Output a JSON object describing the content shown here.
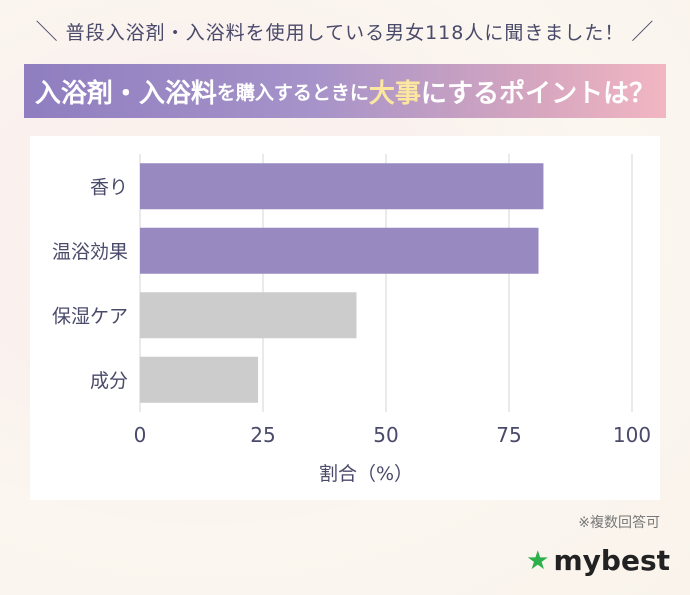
{
  "header": {
    "survey_text": "普段入浴剤・入浴料を使用している男女118人に聞きました！",
    "banner": {
      "part1": "入浴剤・入浴料",
      "part2": "を購入するときに",
      "part3": "大事",
      "part4": "にするポイントは？"
    }
  },
  "chart_data": {
    "type": "bar",
    "orientation": "horizontal",
    "categories": [
      "香り",
      "温浴効果",
      "保湿ケア",
      "成分"
    ],
    "values": [
      82,
      81,
      44,
      24
    ],
    "colors": [
      "#9889c0",
      "#9889c0",
      "#cccccc",
      "#cccccc"
    ],
    "xlim": [
      0,
      100
    ],
    "xticks": [
      "0",
      "25",
      "50",
      "75",
      "100"
    ],
    "xlabel": "割合（%）",
    "ylabel": "",
    "grid": true
  },
  "footnote": "※複数回答可",
  "brand": {
    "name": "mybest",
    "icon": "star-icon",
    "color": "#2db04b"
  }
}
